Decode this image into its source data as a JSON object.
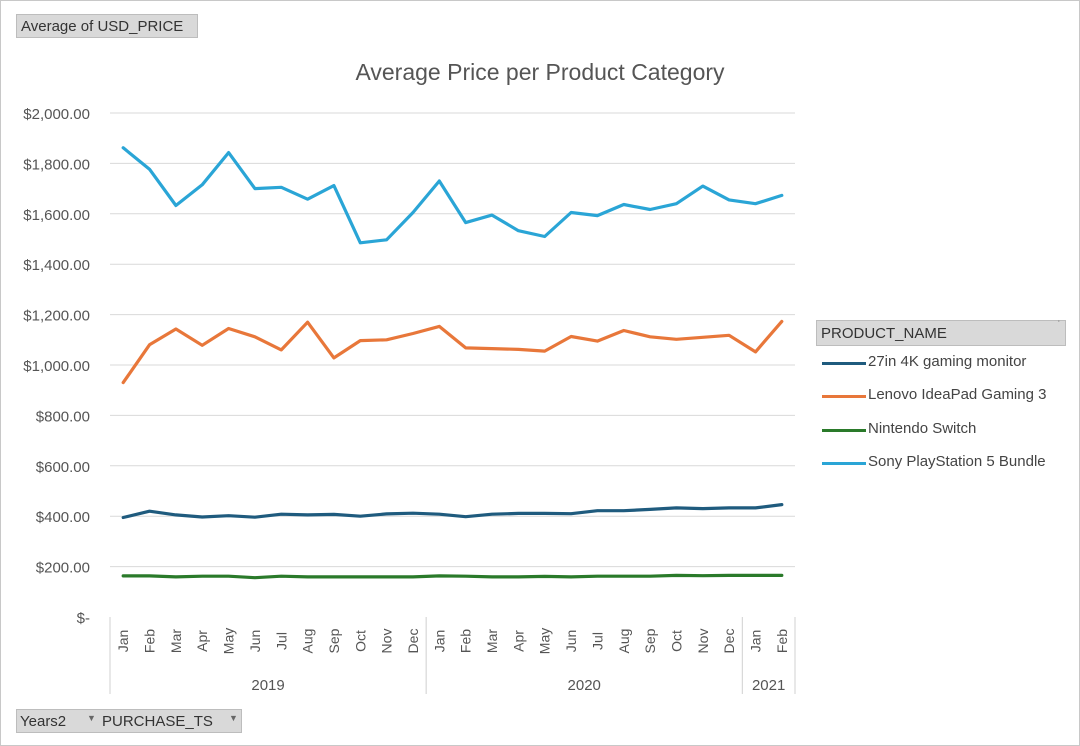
{
  "value_field_button": "Average of USD_PRICE",
  "legend_field_button": "PRODUCT_NAME",
  "axis_field_buttons": [
    "Years2",
    "PURCHASE_TS"
  ],
  "chart_data": {
    "type": "line",
    "title": "Average Price per Product Category",
    "ylim": [
      0,
      2000
    ],
    "ytick_labels": [
      "$-",
      "$200.00",
      "$400.00",
      "$600.00",
      "$800.00",
      "$1,000.00",
      "$1,200.00",
      "$1,400.00",
      "$1,600.00",
      "$1,800.00",
      "$2,000.00"
    ],
    "categories": [
      "Jan",
      "Feb",
      "Mar",
      "Apr",
      "May",
      "Jun",
      "Jul",
      "Aug",
      "Sep",
      "Oct",
      "Nov",
      "Dec",
      "Jan",
      "Feb",
      "Mar",
      "Apr",
      "May",
      "Jun",
      "Jul",
      "Aug",
      "Sep",
      "Oct",
      "Nov",
      "Dec",
      "Jan",
      "Feb"
    ],
    "year_groups": [
      {
        "label": "2019",
        "count": 12
      },
      {
        "label": "2020",
        "count": 12
      },
      {
        "label": "2021",
        "count": 2
      }
    ],
    "legend_position": "right",
    "grid": true,
    "series": [
      {
        "name": "27in 4K gaming monitor",
        "color": "#1f5b7e",
        "values": [
          395,
          420,
          405,
          397,
          402,
          396,
          408,
          405,
          407,
          400,
          409,
          412,
          408,
          398,
          408,
          411,
          411,
          410,
          422,
          422,
          427,
          433,
          430,
          433,
          433,
          446
        ]
      },
      {
        "name": "Lenovo IdeaPad Gaming 3",
        "color": "#e8773a",
        "values": [
          930,
          1080,
          1143,
          1078,
          1145,
          1112,
          1060,
          1170,
          1028,
          1097,
          1100,
          1125,
          1153,
          1068,
          1065,
          1062,
          1055,
          1113,
          1095,
          1137,
          1112,
          1102,
          1110,
          1118,
          1052,
          1173
        ]
      },
      {
        "name": "Nintendo Switch",
        "color": "#2a7a2a",
        "values": [
          163,
          163,
          159,
          162,
          162,
          156,
          162,
          159,
          159,
          159,
          159,
          159,
          163,
          162,
          159,
          159,
          161,
          159,
          162,
          162,
          162,
          165,
          164,
          165,
          165,
          165
        ]
      },
      {
        "name": "Sony PlayStation 5 Bundle",
        "color": "#2aa5d6",
        "values": [
          1862,
          1777,
          1633,
          1715,
          1843,
          1700,
          1705,
          1658,
          1712,
          1485,
          1497,
          1605,
          1730,
          1565,
          1595,
          1533,
          1510,
          1605,
          1593,
          1637,
          1617,
          1640,
          1710,
          1655,
          1640,
          1673
        ]
      }
    ]
  }
}
